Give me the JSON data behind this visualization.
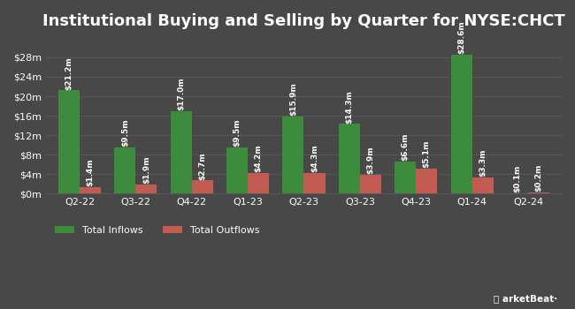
{
  "title": "Institutional Buying and Selling by Quarter for NYSE:CHCT",
  "categories": [
    "Q2-22",
    "Q3-22",
    "Q4-22",
    "Q1-23",
    "Q2-23",
    "Q3-23",
    "Q4-23",
    "Q1-24",
    "Q2-24"
  ],
  "inflows": [
    21.2,
    9.5,
    17.0,
    9.5,
    15.9,
    14.3,
    6.6,
    28.6,
    0.1
  ],
  "outflows": [
    1.4,
    1.9,
    2.7,
    4.2,
    4.3,
    3.9,
    5.1,
    3.3,
    0.2
  ],
  "inflow_labels": [
    "$21.2m",
    "$9.5m",
    "$17.0m",
    "$9.5m",
    "$15.9m",
    "$14.3m",
    "$6.6m",
    "$28.6m",
    "$0.1m"
  ],
  "outflow_labels": [
    "$1.4m",
    "$1.9m",
    "$2.7m",
    "$4.2m",
    "$4.3m",
    "$3.9m",
    "$5.1m",
    "$3.3m",
    "$0.2m"
  ],
  "inflow_color": "#3d8c3d",
  "outflow_color": "#c25b52",
  "bg_color": "#484848",
  "plot_bg_color": "#484848",
  "text_color": "#ffffff",
  "grid_color": "#5a5a5a",
  "bar_width": 0.38,
  "ylim": [
    0,
    32
  ],
  "yticks": [
    0,
    4,
    8,
    12,
    16,
    20,
    24,
    28
  ],
  "legend_inflow": "Total Inflows",
  "legend_outflow": "Total Outflows",
  "title_fontsize": 13,
  "label_fontsize": 6.5,
  "tick_fontsize": 8,
  "legend_fontsize": 8
}
